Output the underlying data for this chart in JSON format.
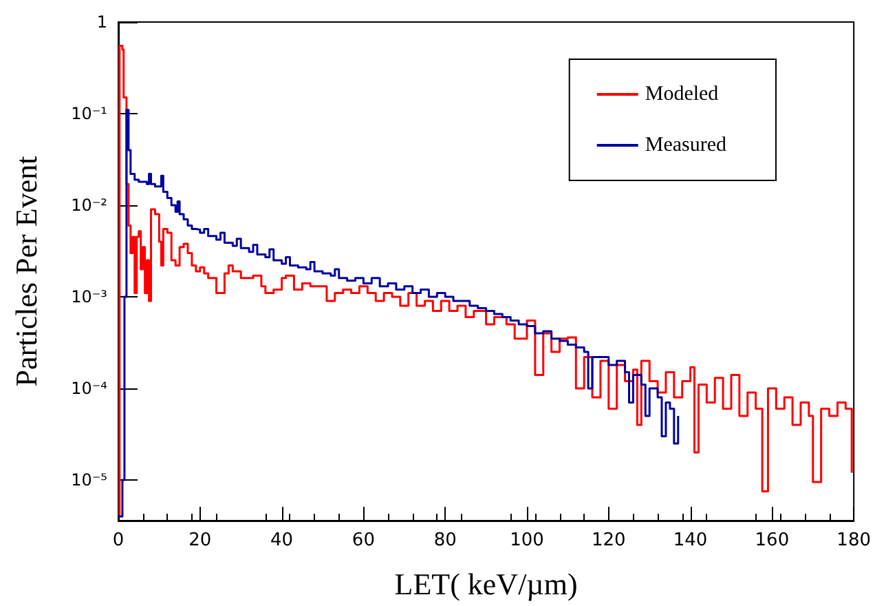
{
  "chart_data": {
    "type": "step",
    "xlabel": "LET( keV/µm)",
    "ylabel": "Particles Per Event",
    "log": "y",
    "grid": false,
    "legend": "top right",
    "marker": "none",
    "line_style": "solid",
    "xlim": [
      0,
      180
    ],
    "xticks": [
      0,
      20,
      40,
      60,
      80,
      100,
      120,
      140,
      160,
      180
    ],
    "ylim": [
      3.6e-06,
      1
    ],
    "yticks": [
      {
        "value": 1e-05,
        "label": "10⁻⁵"
      },
      {
        "value": 0.0001,
        "label": "10⁻⁴"
      },
      {
        "value": 0.001,
        "label": "10⁻³"
      },
      {
        "value": 0.01,
        "label": "10⁻²"
      },
      {
        "value": 0.1,
        "label": "10⁻¹"
      },
      {
        "value": 1,
        "label": "1"
      }
    ],
    "series": [
      {
        "name": "Modeled",
        "color": "#ff0000",
        "x": [
          0,
          0.3,
          1,
          1.3,
          2,
          2.5,
          3,
          3.5,
          4,
          4.5,
          5,
          5.5,
          6,
          6.5,
          7,
          7.5,
          8,
          9,
          10,
          10.5,
          11,
          12,
          13,
          14,
          15,
          16,
          17,
          18,
          19,
          20,
          21,
          22,
          24,
          26,
          27,
          28,
          30,
          32,
          33,
          35,
          36,
          38,
          40,
          41,
          43,
          45,
          47,
          49,
          51,
          53,
          55,
          57,
          59,
          61,
          63,
          65,
          67,
          69,
          71,
          73,
          75,
          77,
          79,
          81,
          83,
          85,
          87,
          90,
          92,
          95,
          97,
          100,
          102,
          104,
          106,
          108,
          110,
          112,
          114,
          116,
          118,
          120,
          122,
          124,
          126,
          127,
          128,
          130,
          132,
          134,
          136,
          138,
          140,
          141,
          142,
          144,
          146,
          148,
          150,
          152,
          154,
          156,
          157.6,
          159,
          161,
          163,
          165,
          167,
          169,
          170,
          172,
          174,
          176,
          178,
          179.5
        ],
        "values": [
          4e-06,
          0.55,
          0.5,
          0.15,
          0.017,
          0.006,
          0.003,
          0.0045,
          0.0011,
          0.0045,
          0.0052,
          0.002,
          0.0035,
          0.0011,
          0.0025,
          0.0009,
          0.009,
          0.008,
          0.004,
          0.0022,
          0.0055,
          0.005,
          0.0025,
          0.0022,
          0.0035,
          0.0038,
          0.003,
          0.0022,
          0.0019,
          0.0021,
          0.0018,
          0.0016,
          0.0011,
          0.0018,
          0.0022,
          0.0019,
          0.0016,
          0.0016,
          0.0017,
          0.0013,
          0.0011,
          0.0012,
          0.0016,
          0.0017,
          0.0012,
          0.0014,
          0.0013,
          0.0013,
          0.0009,
          0.0011,
          0.0012,
          0.0011,
          0.0013,
          0.0011,
          0.0009,
          0.0011,
          0.001,
          0.0008,
          0.0011,
          0.0008,
          0.0009,
          0.0007,
          0.0009,
          0.0007,
          0.0008,
          0.0006,
          0.0007,
          0.0005,
          0.0006,
          0.0005,
          0.00035,
          0.00055,
          0.00014,
          0.0004,
          0.00025,
          0.00035,
          0.00036,
          0.0001,
          0.00022,
          8e-05,
          0.0002,
          6e-05,
          0.00018,
          0.00012,
          0.00016,
          4e-05,
          0.0002,
          0.00012,
          9e-05,
          0.00015,
          8e-05,
          0.00012,
          0.00017,
          2e-05,
          0.00011,
          7e-05,
          0.00013,
          6e-05,
          0.00014,
          5e-05,
          9e-05,
          6e-05,
          7.5e-06,
          0.0001,
          6e-05,
          8e-05,
          4e-05,
          7e-05,
          5e-05,
          9.5e-06,
          6e-05,
          5e-05,
          7e-05,
          6e-05,
          1.2e-05
        ]
      },
      {
        "name": "Measured",
        "color": "#0000a0",
        "x": [
          0,
          1,
          1.5,
          2,
          2.5,
          3,
          4,
          5,
          6,
          7,
          7.5,
          8,
          9,
          10,
          10.5,
          11,
          12,
          13,
          14,
          14.5,
          15,
          16,
          17,
          18,
          19,
          20,
          21,
          22,
          24,
          25,
          26,
          28,
          29,
          30,
          32,
          33,
          34,
          36,
          37,
          38,
          40,
          41,
          42,
          44,
          46,
          47,
          48,
          50,
          52,
          53,
          54,
          56,
          58,
          60,
          62,
          64,
          66,
          68,
          70,
          72,
          74,
          76,
          78,
          80,
          82,
          84,
          86,
          88,
          90,
          92,
          94,
          96,
          98,
          100,
          102,
          104,
          106,
          108,
          110,
          112,
          114,
          115,
          116,
          118,
          120,
          122,
          124,
          125,
          126,
          128,
          129,
          130,
          132,
          133,
          134,
          135,
          136,
          137
        ],
        "values": [
          4e-06,
          1e-05,
          0.001,
          0.11,
          0.04,
          0.022,
          0.019,
          0.018,
          0.018,
          0.017,
          0.022,
          0.017,
          0.016,
          0.016,
          0.021,
          0.014,
          0.012,
          0.01,
          0.0085,
          0.011,
          0.008,
          0.007,
          0.006,
          0.0055,
          0.0054,
          0.005,
          0.0055,
          0.0046,
          0.0042,
          0.005,
          0.0039,
          0.0036,
          0.0043,
          0.0034,
          0.0031,
          0.0037,
          0.0029,
          0.0027,
          0.0033,
          0.0025,
          0.0023,
          0.0027,
          0.0022,
          0.0021,
          0.002,
          0.0024,
          0.0019,
          0.0018,
          0.0017,
          0.002,
          0.0016,
          0.0015,
          0.0016,
          0.0014,
          0.0016,
          0.0013,
          0.0014,
          0.0012,
          0.0013,
          0.0011,
          0.0012,
          0.001,
          0.0011,
          0.001,
          0.0009,
          0.0009,
          0.0008,
          0.00075,
          0.0007,
          0.00065,
          0.0006,
          0.00055,
          0.0005,
          0.00048,
          0.0004,
          0.00042,
          0.00035,
          0.00033,
          0.0003,
          0.00028,
          0.00025,
          0.0001,
          0.00022,
          0.00022,
          0.00018,
          0.0002,
          0.00015,
          7e-05,
          0.00014,
          0.00011,
          5e-05,
          0.0001,
          8e-05,
          3e-05,
          7e-05,
          6e-05,
          2.5e-05,
          5e-05
        ]
      }
    ]
  }
}
